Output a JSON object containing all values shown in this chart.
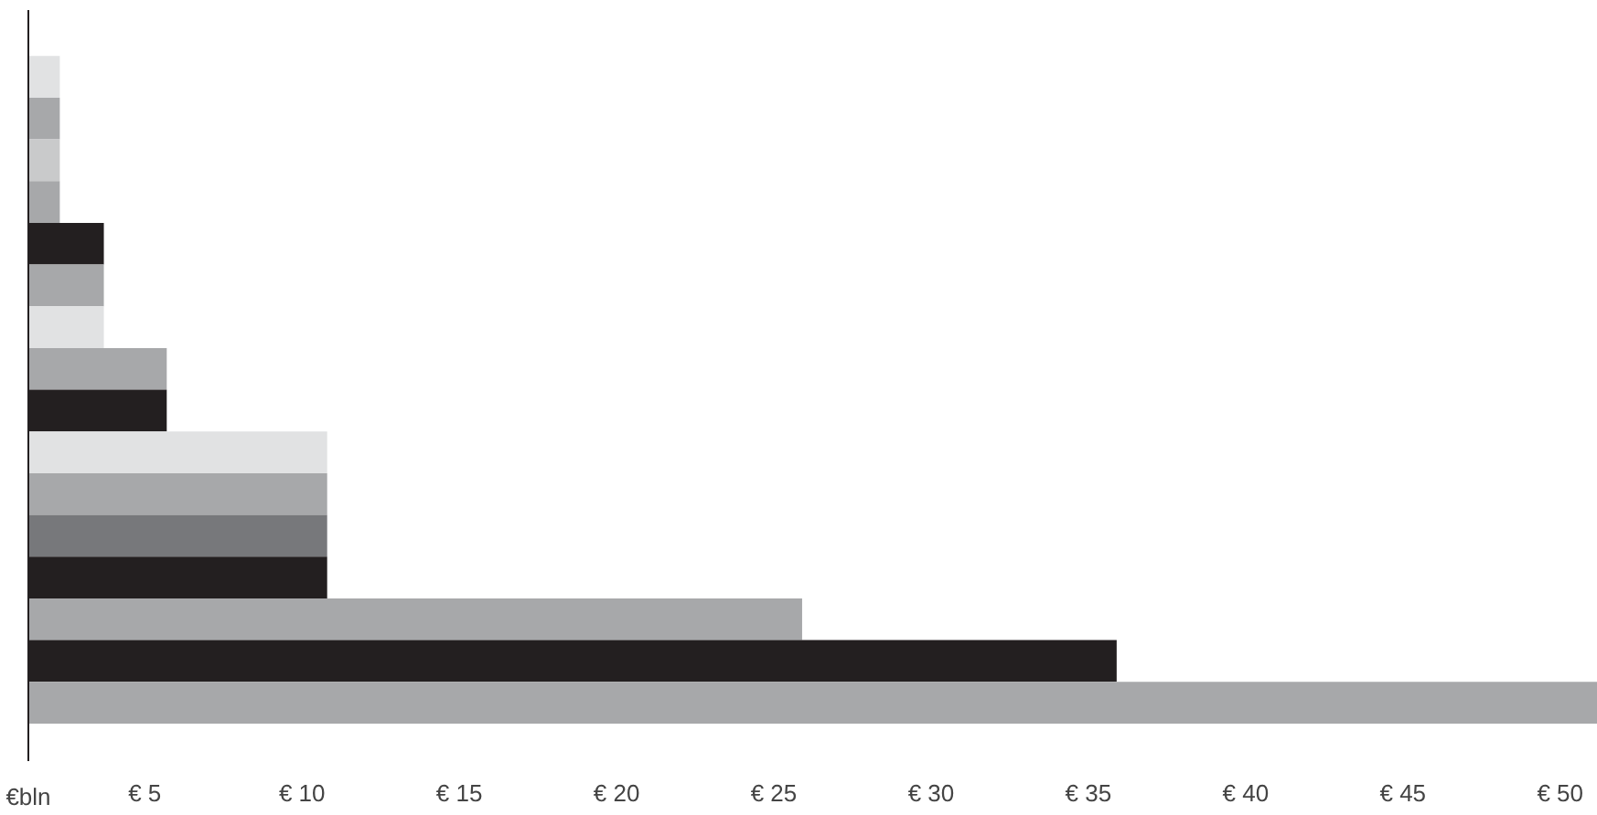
{
  "chart_data": {
    "type": "bar",
    "orientation": "horizontal",
    "xlabel": "€bln",
    "categories": [
      null,
      null,
      null,
      null,
      null,
      null,
      null,
      null,
      null,
      null,
      null,
      null,
      null,
      null,
      null,
      null
    ],
    "values": [
      2.3,
      2.3,
      2.3,
      2.3,
      3.7,
      3.7,
      3.7,
      5.7,
      5.7,
      10.8,
      10.8,
      10.8,
      10.8,
      25.9,
      35.9,
      51.2
    ],
    "colors": [
      "#e1e2e3",
      "#a7a8aa",
      "#c9cacb",
      "#a7a8aa",
      "#231f20",
      "#a7a8aa",
      "#e1e2e3",
      "#a7a8aa",
      "#231f20",
      "#e1e2e3",
      "#a7a8aa",
      "#77787b",
      "#231f20",
      "#a7a8aa",
      "#231f20",
      "#a7a8aa"
    ],
    "xlim": [
      1.3,
      51.2
    ],
    "xticks": [
      {
        "value": 5,
        "label": "€ 5"
      },
      {
        "value": 10,
        "label": "€ 10"
      },
      {
        "value": 15,
        "label": "€ 15"
      },
      {
        "value": 20,
        "label": "€ 20"
      },
      {
        "value": 25,
        "label": "€ 25"
      },
      {
        "value": 30,
        "label": "€ 30"
      },
      {
        "value": 35,
        "label": "€ 35"
      },
      {
        "value": 40,
        "label": "€ 40"
      },
      {
        "value": 45,
        "label": "€ 45"
      },
      {
        "value": 50,
        "label": "€ 50"
      }
    ],
    "grid": false
  }
}
